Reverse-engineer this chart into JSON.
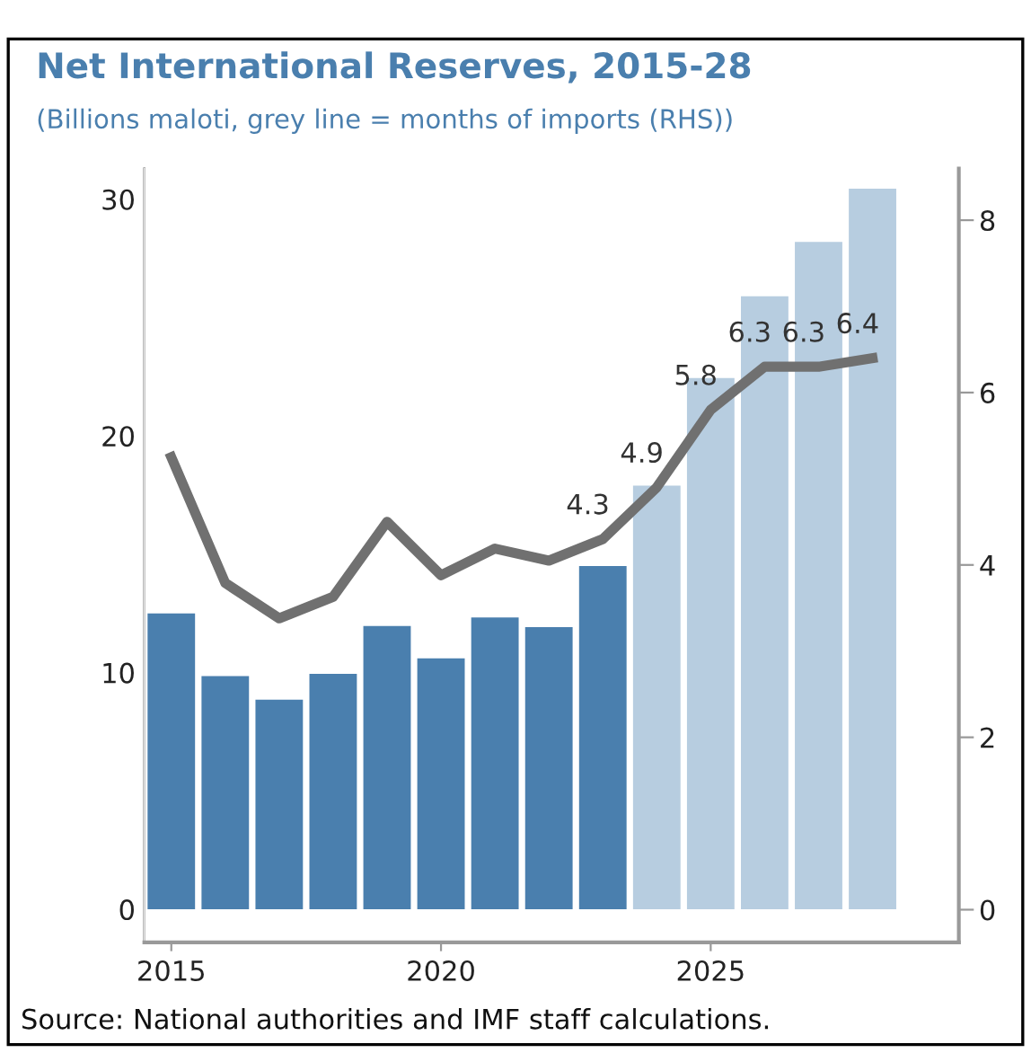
{
  "chart_data": {
    "type": "bar",
    "title": "Net International Reserves, 2015-28",
    "subtitle": "(Billions maloti, grey line = months of imports (RHS))",
    "x": [
      2015,
      2016,
      2017,
      2018,
      2019,
      2020,
      2021,
      2022,
      2023,
      2024,
      2025,
      2026,
      2027,
      2028
    ],
    "series": [
      {
        "colors": [
          "#4a7fae",
          "#4a7fae",
          "#4a7fae",
          "#4a7fae",
          "#4a7fae",
          "#4a7fae",
          "#4a7fae",
          "#4a7fae",
          "#4a7fae",
          "#b7cde0",
          "#b7cde0",
          "#b7cde0",
          "#b7cde0",
          "#b7cde0"
        ],
        "values": [
          12.5,
          9.85,
          8.86,
          9.95,
          11.97,
          10.6,
          12.33,
          11.92,
          14.5,
          17.9,
          22.45,
          25.9,
          28.2,
          30.45
        ]
      },
      {
        "type": "line",
        "axis": "y2",
        "color": "#707070",
        "values": [
          5.25,
          3.79,
          3.38,
          3.63,
          4.5,
          3.88,
          4.19,
          4.05,
          4.3,
          4.9,
          5.8,
          6.3,
          6.3,
          6.4
        ],
        "value_labels": [
          null,
          null,
          null,
          null,
          null,
          null,
          null,
          null,
          "4.3",
          "4.9",
          "5.8",
          "6.3",
          "6.3",
          "6.4"
        ]
      }
    ],
    "xlim": [
      2014.5,
      2029.6
    ],
    "xticks": [
      2015,
      2020,
      2025
    ],
    "ylim": [
      -1.4,
      31.3
    ],
    "yticks": [
      0,
      10,
      20,
      30
    ],
    "y2lim": [
      -0.38,
      8.6
    ],
    "y2ticks": [
      0,
      2,
      4,
      6,
      8
    ],
    "grid": false,
    "legend": false,
    "annotations": [
      "Source: National authorities and IMF staff calculations."
    ]
  }
}
